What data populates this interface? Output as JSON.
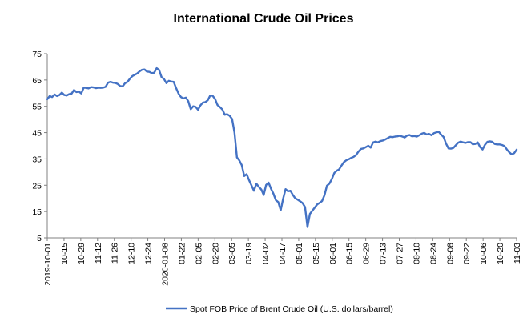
{
  "chart_data": {
    "type": "line",
    "title": "International Crude Oil Prices",
    "xlabel": "",
    "ylabel": "",
    "ylim": [
      5,
      75
    ],
    "yticks": [
      5,
      15,
      25,
      35,
      45,
      55,
      65,
      75
    ],
    "grid": false,
    "legend_position": "bottom",
    "line_color": "#4472C4",
    "x_tick_labels": [
      "2019-10-01",
      "10-15",
      "10-29",
      "11-12",
      "11-26",
      "12-10",
      "12-24",
      "2020-01-08",
      "01-22",
      "02-05",
      "02-20",
      "03-05",
      "03-19",
      "04-02",
      "04-17",
      "05-01",
      "05-15",
      "06-01",
      "06-15",
      "06-29",
      "07-13",
      "07-27",
      "08-10",
      "08-24",
      "09-08",
      "09-22",
      "10-06",
      "10-20",
      "11-03"
    ],
    "series": [
      {
        "name": "Spot FOB Price of Brent Crude Oil (U.S. dollars/barrel)",
        "values": [
          57.7,
          58.9,
          58.5,
          59.5,
          58.9,
          59.3,
          60.2,
          59.3,
          59.1,
          59.6,
          59.8,
          61.2,
          60.4,
          60.6,
          59.9,
          62.1,
          62.0,
          61.8,
          62.3,
          62.2,
          61.9,
          62.1,
          62.0,
          62.1,
          62.4,
          64.0,
          64.3,
          64.0,
          63.9,
          63.5,
          62.7,
          62.6,
          63.8,
          64.3,
          65.5,
          66.5,
          67.0,
          67.5,
          68.3,
          68.9,
          69.0,
          68.2,
          68.1,
          67.6,
          67.8,
          69.5,
          68.8,
          66.1,
          65.4,
          63.8,
          64.7,
          64.4,
          64.3,
          61.9,
          59.8,
          58.5,
          58.0,
          58.3,
          56.9,
          53.9,
          55.0,
          54.8,
          53.7,
          55.4,
          56.4,
          56.6,
          57.3,
          59.1,
          59.0,
          57.8,
          55.5,
          54.7,
          53.8,
          51.8,
          52.0,
          51.4,
          50.2,
          45.0,
          35.6,
          34.4,
          32.6,
          28.5,
          29.2,
          26.9,
          24.9,
          22.9,
          25.6,
          24.4,
          23.4,
          21.3,
          25.1,
          26.0,
          23.7,
          21.8,
          19.3,
          18.6,
          15.5,
          19.9,
          23.5,
          22.7,
          22.9,
          21.3,
          20.0,
          19.5,
          18.9,
          18.2,
          16.7,
          9.1,
          14.1,
          15.3,
          16.5,
          17.7,
          18.3,
          19.0,
          21.2,
          24.8,
          25.6,
          27.3,
          29.6,
          30.5,
          31.0,
          32.5,
          33.8,
          34.5,
          34.9,
          35.4,
          35.8,
          36.5,
          37.8,
          38.8,
          39.0,
          39.5,
          40.0,
          39.3,
          41.3,
          41.6,
          41.3,
          41.8,
          42.0,
          42.4,
          42.9,
          43.4,
          43.3,
          43.5,
          43.6,
          43.8,
          43.5,
          43.2,
          43.9,
          44.1,
          43.6,
          43.7,
          43.5,
          44.0,
          44.6,
          44.9,
          44.3,
          44.5,
          44.0,
          44.8,
          45.1,
          45.3,
          44.2,
          43.3,
          40.8,
          39.0,
          38.9,
          39.2,
          40.2,
          41.2,
          41.6,
          41.3,
          41.1,
          41.4,
          41.4,
          40.6,
          40.7,
          41.3,
          39.5,
          38.6,
          40.4,
          41.5,
          41.7,
          41.5,
          40.7,
          40.5,
          40.5,
          40.3,
          39.9,
          38.6,
          37.5,
          36.7,
          37.2,
          38.5
        ]
      }
    ]
  }
}
